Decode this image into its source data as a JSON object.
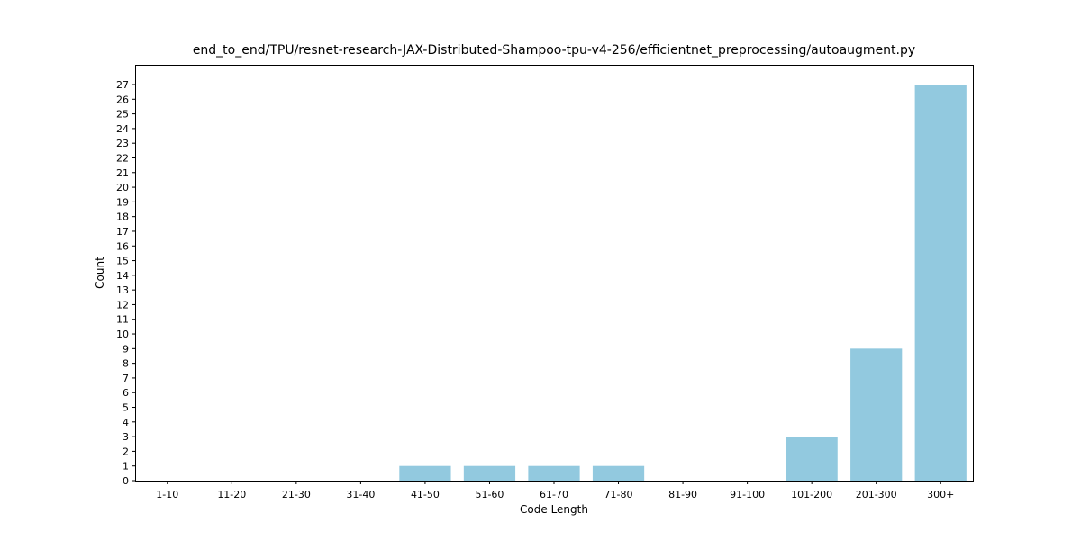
{
  "chart_data": {
    "type": "bar",
    "title": "end_to_end/TPU/resnet-research-JAX-Distributed-Shampoo-tpu-v4-256/efficientnet_preprocessing/autoaugment.py",
    "xlabel": "Code Length",
    "ylabel": "Count",
    "categories": [
      "1-10",
      "11-20",
      "21-30",
      "31-40",
      "41-50",
      "51-60",
      "61-70",
      "71-80",
      "81-90",
      "91-100",
      "101-200",
      "201-300",
      "300+"
    ],
    "values": [
      0,
      0,
      0,
      0,
      1,
      1,
      1,
      1,
      0,
      0,
      3,
      9,
      27
    ],
    "ylim": [
      0,
      28.35
    ],
    "yticks": [
      0,
      1,
      2,
      3,
      4,
      5,
      6,
      7,
      8,
      9,
      10,
      11,
      12,
      13,
      14,
      15,
      16,
      17,
      18,
      19,
      20,
      21,
      22,
      23,
      24,
      25,
      26,
      27
    ],
    "bar_color": "#92c9df",
    "grid": false,
    "legend": "none"
  }
}
